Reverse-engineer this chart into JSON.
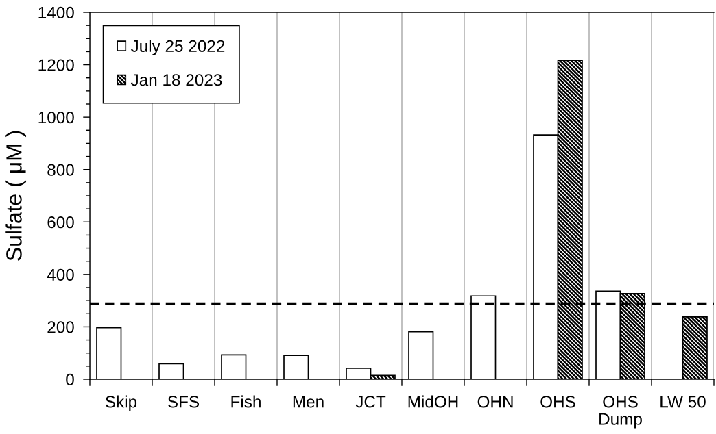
{
  "chart_data": {
    "type": "bar",
    "ylabel": "Sulfate ( μM )",
    "categories": [
      "Skip",
      "SFS",
      "Fish",
      "Men",
      "JCT",
      "MidOH",
      "OHN",
      "OHS",
      "OHS\nDump",
      "LW 50"
    ],
    "series": [
      {
        "name": "July 25 2022",
        "color": "#ffffff",
        "values": [
          197,
          59,
          93,
          91,
          42,
          181,
          318,
          932,
          336,
          null
        ]
      },
      {
        "name": "Jan 18 2023",
        "color": "#000000",
        "values": [
          null,
          null,
          null,
          null,
          15,
          null,
          null,
          1217,
          327,
          238
        ]
      }
    ],
    "ylim": [
      0,
      1400
    ],
    "yticks": [
      0,
      {
        "value": 50,
        "label": null
      },
      {
        "value": 100,
        "label": null
      },
      {
        "value": 150,
        "label": null
      },
      200,
      {
        "value": 250,
        "label": null
      },
      {
        "value": 300,
        "label": null
      },
      {
        "value": 350,
        "label": null
      },
      400,
      {
        "value": 450,
        "label": null
      },
      {
        "value": 500,
        "label": null
      },
      {
        "value": 550,
        "label": null
      },
      600,
      {
        "value": 650,
        "label": null
      },
      {
        "value": 700,
        "label": null
      },
      {
        "value": 750,
        "label": null
      },
      800,
      {
        "value": 850,
        "label": null
      },
      {
        "value": 900,
        "label": null
      },
      {
        "value": 950,
        "label": null
      },
      1000,
      {
        "value": 1050,
        "label": null
      },
      {
        "value": 1100,
        "label": null
      },
      {
        "value": 1150,
        "label": null
      },
      1200,
      {
        "value": 1250,
        "label": null
      },
      {
        "value": 1300,
        "label": null
      },
      {
        "value": 1350,
        "label": null
      },
      1400
    ],
    "grid": "x",
    "legend": "top left",
    "ref_lines": [
      {
        "axis": "y",
        "value": 288,
        "color": "#000000",
        "line_style": "dashed"
      }
    ]
  }
}
